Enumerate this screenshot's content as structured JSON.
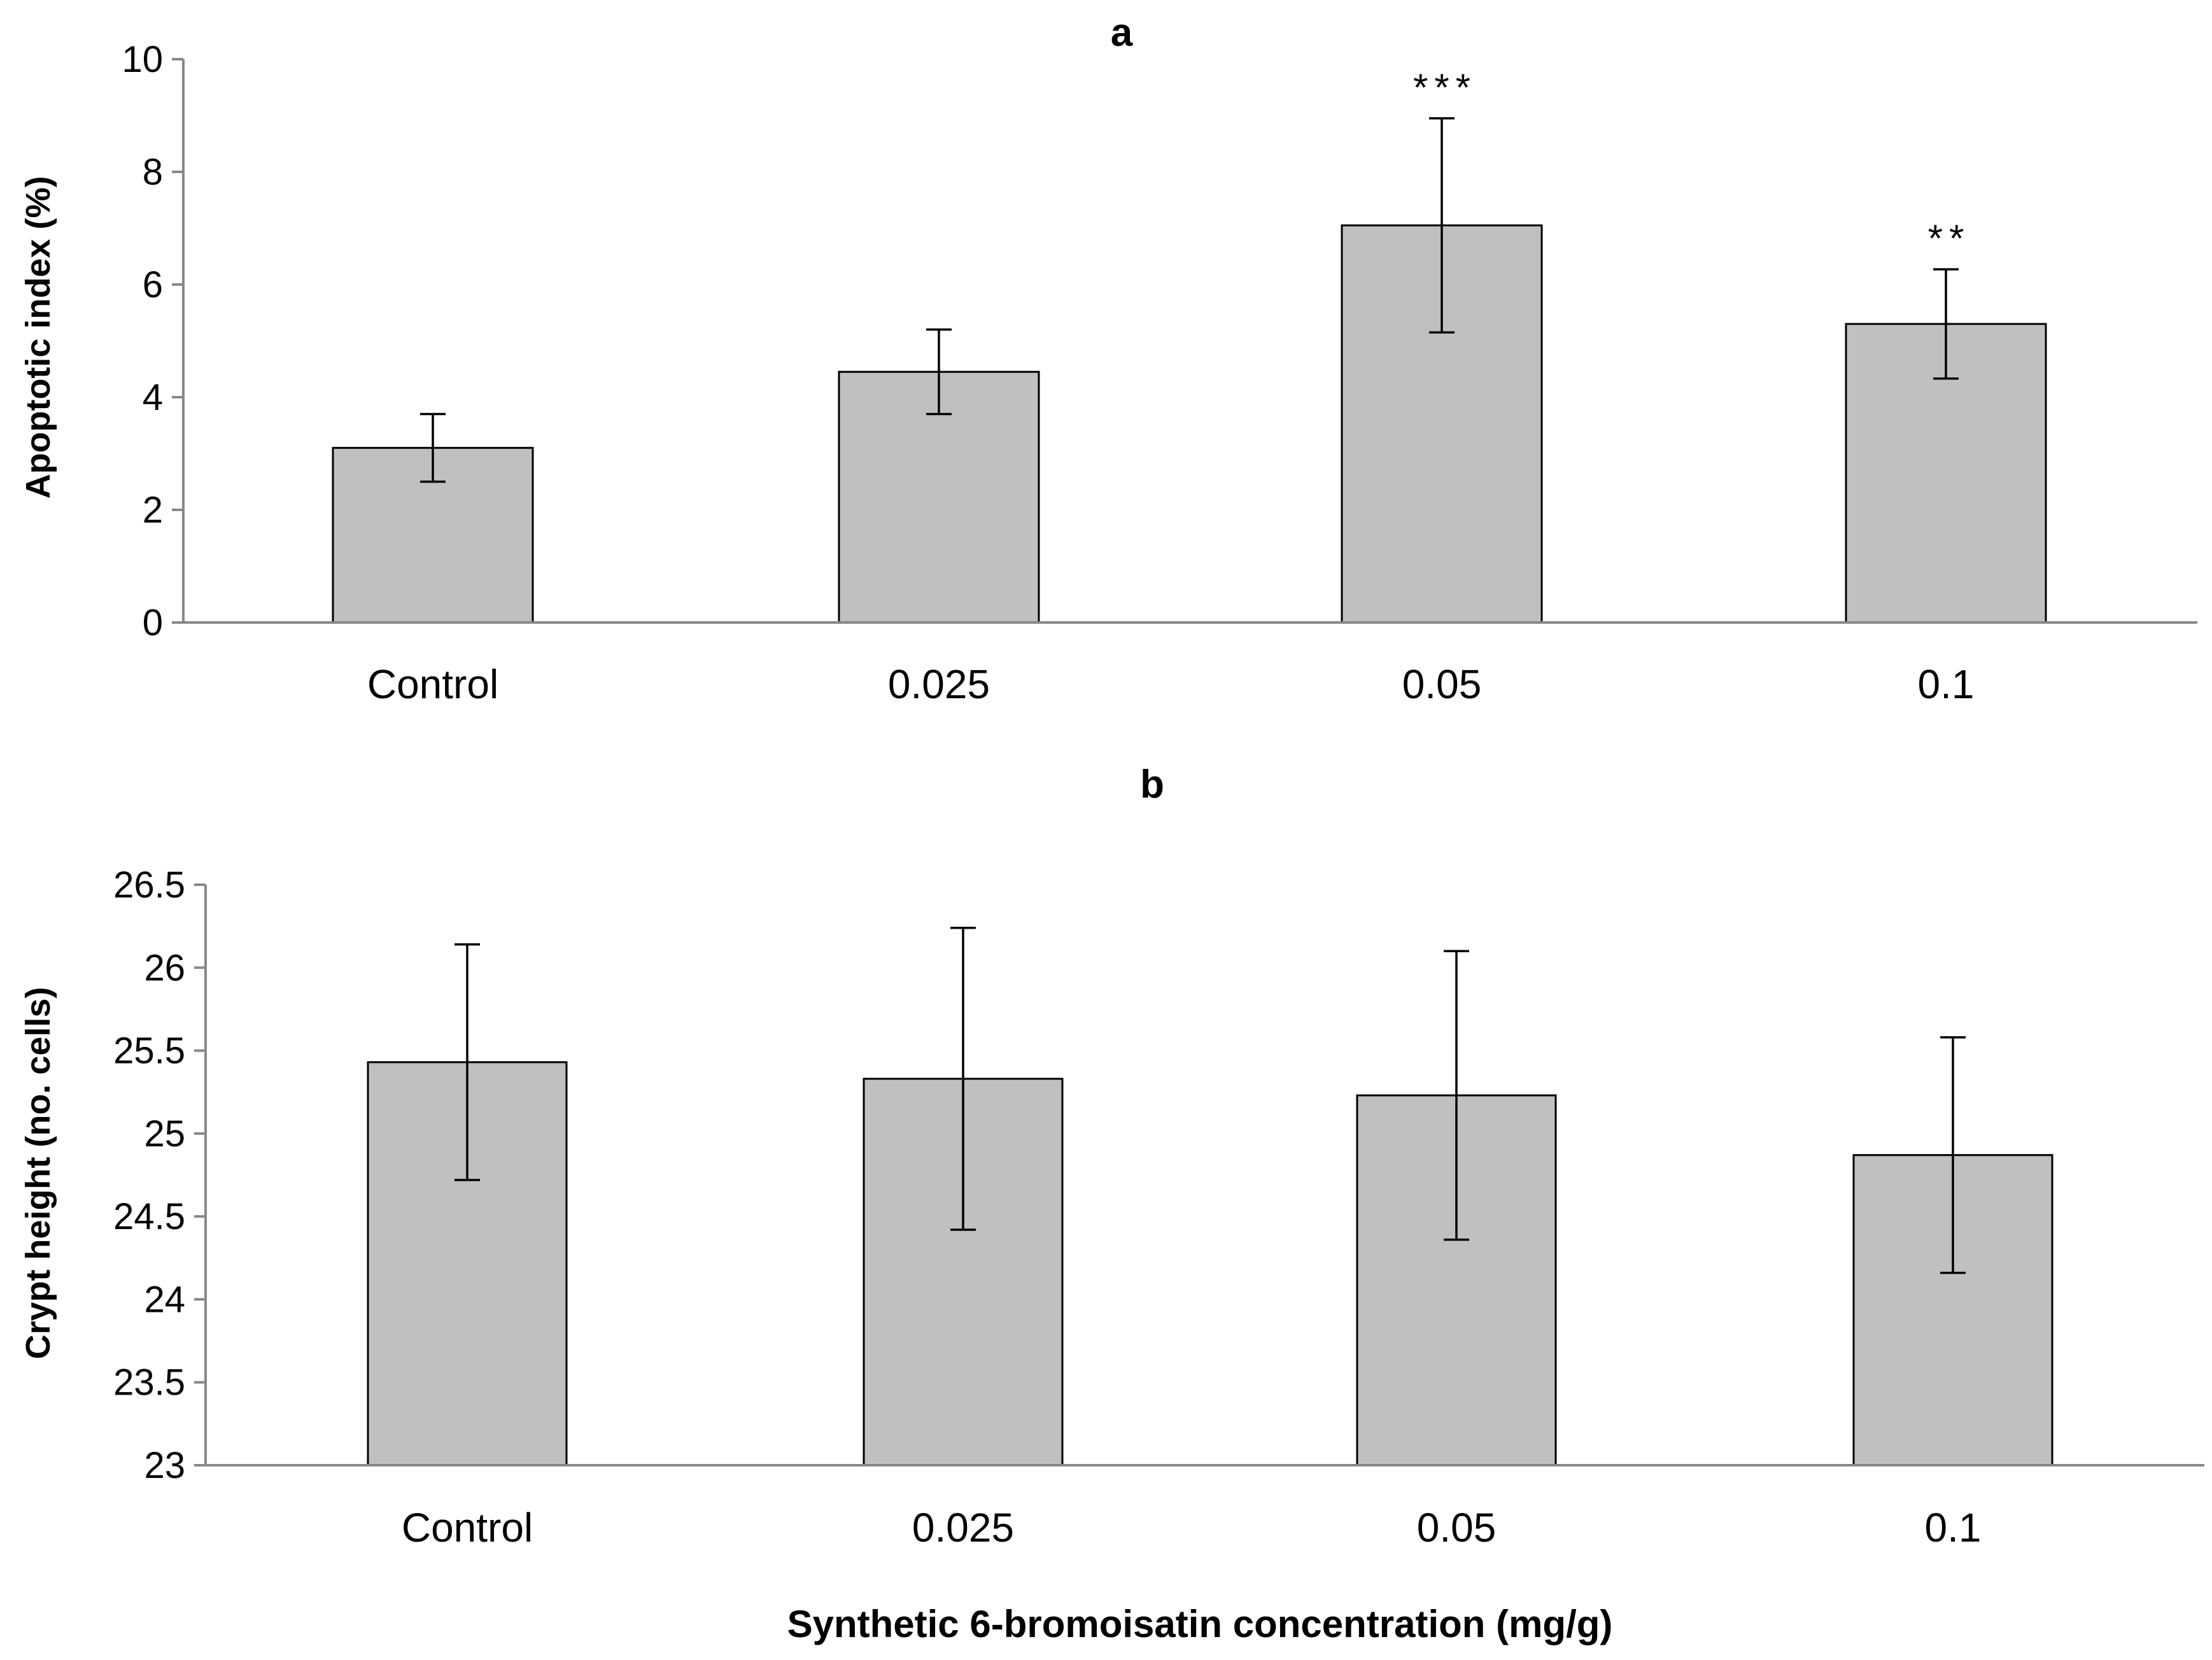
{
  "chart_data": [
    {
      "id": "a",
      "type": "bar",
      "title": "a",
      "ylabel": "Apoptotic index (%)",
      "xlabel": "",
      "categories": [
        "Control",
        "0.025",
        "0.05",
        "0.1"
      ],
      "values": [
        3.1,
        4.45,
        7.05,
        5.3
      ],
      "errors": [
        0.6,
        0.75,
        1.9,
        0.97
      ],
      "significance": [
        "",
        "",
        "***",
        "**"
      ],
      "ylim": [
        0,
        10
      ],
      "yticks": [
        0,
        2,
        4,
        6,
        8,
        10
      ],
      "ytick_labels": [
        "0",
        "2",
        "4",
        "6",
        "8",
        "10"
      ],
      "bar_color": "#c0c0c0",
      "grid": false
    },
    {
      "id": "b",
      "type": "bar",
      "title": "b",
      "ylabel": "Crypt height (no. cells)",
      "xlabel": "Synthetic 6-bromoisatin concentration (mg/g)",
      "categories": [
        "Control",
        "0.025",
        "0.05",
        "0.1"
      ],
      "values": [
        25.43,
        25.33,
        25.23,
        24.87
      ],
      "errors": [
        0.71,
        0.91,
        0.87,
        0.71
      ],
      "significance": [
        "",
        "",
        "",
        ""
      ],
      "ylim": [
        23,
        26.5
      ],
      "yticks": [
        23,
        23.5,
        24,
        24.5,
        25,
        25.5,
        26,
        26.5
      ],
      "ytick_labels": [
        "23",
        "23.5",
        "24",
        "24.5",
        "25",
        "25.5",
        "26",
        "26.5"
      ],
      "bar_color": "#c0c0c0",
      "grid": false
    }
  ]
}
